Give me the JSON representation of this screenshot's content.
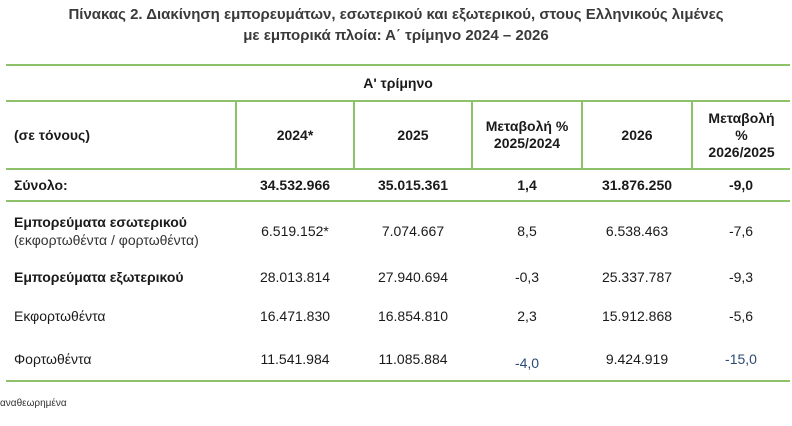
{
  "title_line1": "Πίνακας 2. Διακίνηση εμπορευμάτων, εσωτερικού και εξωτερικού, στους Ελληνικούς λιμένες",
  "title_line2": "με εμπορικά πλοία: Α΄ τρίμηνο 2024 – 2026",
  "super_header": "Α' τρίμηνο",
  "headers": {
    "label": "(σε τόνους)",
    "y2024": "2024*",
    "y2025": "2025",
    "chg1_line1": "Μεταβολή %",
    "chg1_line2": "2025/2024",
    "y2026": "2026",
    "chg2_line1": "Μεταβολή",
    "chg2_line2": "%",
    "chg2_line3": "2026/2025"
  },
  "rows": [
    {
      "label": "Σύνολο:",
      "sub": "",
      "v2024": "34.532.966",
      "v2025": "35.015.361",
      "chg1": "1,4",
      "v2026": "31.876.250",
      "chg2": "-9,0"
    },
    {
      "label": "Εμπορεύματα εσωτερικού",
      "sub": "(εκφορτωθέντα / φορτωθέντα)",
      "v2024": "6.519.152*",
      "v2025": "7.074.667",
      "chg1": "8,5",
      "v2026": "6.538.463",
      "chg2": "-7,6"
    },
    {
      "label": "Εμπορεύματα εξωτερικού",
      "sub": "",
      "v2024": "28.013.814",
      "v2025": "27.940.694",
      "chg1": "-0,3",
      "v2026": "25.337.787",
      "chg2": "-9,3"
    },
    {
      "label": "Εκφορτωθέντα",
      "sub": "",
      "v2024": "16.471.830",
      "v2025": "16.854.810",
      "chg1": "2,3",
      "v2026": "15.912.868",
      "chg2": "-5,6"
    },
    {
      "label": "Φορτωθέντα",
      "sub": "",
      "v2024": "11.541.984",
      "v2025": "11.085.884",
      "chg1": "-4,0",
      "v2026": "9.424.919",
      "chg2": "-15,0"
    }
  ],
  "footnote": "αναθεωρημένα",
  "colors": {
    "rule": "#8dc26a",
    "accent_text": "#2d4a77"
  }
}
